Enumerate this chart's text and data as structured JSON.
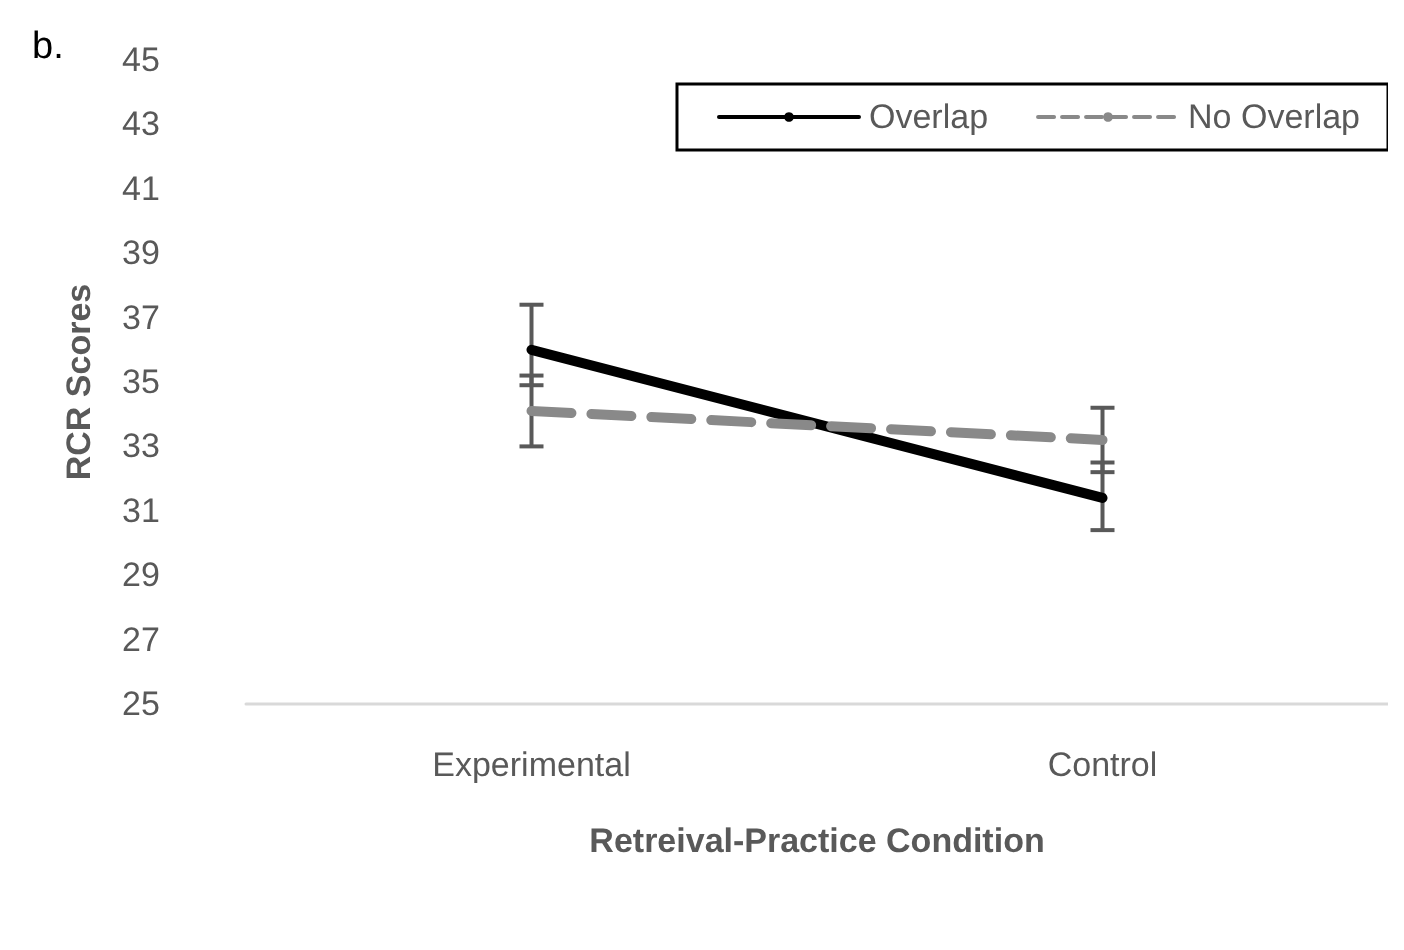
{
  "chart_data": {
    "type": "line",
    "xlabel": "Retreival-Practice Condition",
    "ylabel": "RCR Scores",
    "categories": [
      "Experimental",
      "Control"
    ],
    "series": [
      {
        "name": "Overlap",
        "color": "#000000",
        "values": [
          36.0,
          31.4
        ],
        "errors": [
          [
            34.9,
            37.4
          ],
          [
            30.4,
            32.5
          ]
        ],
        "line_style": "solid"
      },
      {
        "name": "No Overlap",
        "color": "#898989",
        "values": [
          34.1,
          33.2
        ],
        "errors": [
          [
            33.0,
            35.2
          ],
          [
            32.2,
            34.2
          ]
        ],
        "line_style": "dashed"
      }
    ],
    "ylim": [
      25,
      45
    ],
    "yticks": [
      25,
      27,
      29,
      31,
      33,
      35,
      37,
      39,
      41,
      43,
      45
    ],
    "grid": false,
    "legend": "top right",
    "marker": "none",
    "annotations": [
      "b."
    ]
  }
}
